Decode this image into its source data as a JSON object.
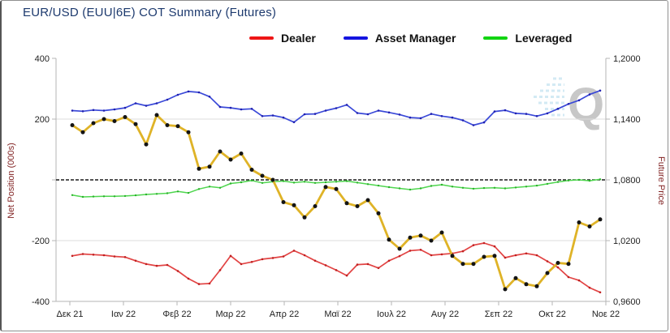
{
  "header": {
    "title": "EUR/USD (EUU|6E) COT Summary (Futures)"
  },
  "watermark": {
    "text": "Q"
  },
  "colors": {
    "title": "#1d3a6e",
    "axis_title": "#7f1f1f",
    "tick_label": "#222222",
    "grid": "#dcdcdc",
    "axis_line": "#b5b5b5",
    "zero_line": "#1a1a1a",
    "watermark_q": "#c2c2c2",
    "watermark_rays": "#cfe8f3"
  },
  "chart_data": {
    "type": "line",
    "title": "EUR/USD (EUU|6E) COT Summary (Futures)",
    "x_tick_labels": [
      "Δεκ 21",
      "Ιαν 22",
      "Φεβ 22",
      "Μαρ 22",
      "Απρ 22",
      "Μαϊ 22",
      "Ιουλ 22",
      "Αυγ 22",
      "Σεπ 22",
      "Οκτ 22",
      "Νοε 22"
    ],
    "left_axis": {
      "label": "Net Position (000s)",
      "range": [
        -400,
        400
      ],
      "tick_values": [
        400,
        200,
        0,
        -200,
        -400
      ],
      "tick_labels": [
        "400",
        "200",
        "",
        "-200",
        "-400"
      ]
    },
    "right_axis": {
      "label": "Future Price",
      "range": [
        0.96,
        1.2
      ],
      "tick_values": [
        1.2,
        1.14,
        1.08,
        1.02,
        0.96
      ],
      "tick_labels": [
        "1,2000",
        "1,1400",
        "1,0800",
        "1,0200",
        "0,9600"
      ]
    },
    "zero_line": {
      "style": "dashed",
      "left_value": 0,
      "right_value": 1.08
    },
    "grid_values": [
      200,
      -200
    ],
    "legend": [
      {
        "label": "Dealer",
        "color": "#ee1616"
      },
      {
        "label": "Asset Manager",
        "color": "#1414e0"
      },
      {
        "label": "Leveraged",
        "color": "#12d412"
      }
    ],
    "series": [
      {
        "name": "Dealer",
        "axis": "left",
        "color": "#e24444",
        "marker_color": "#c02020",
        "values": [
          -250,
          -244,
          -246,
          -248,
          -252,
          -254,
          -266,
          -277,
          -283,
          -280,
          -300,
          -325,
          -343,
          -341,
          -297,
          -250,
          -277,
          -270,
          -261,
          -257,
          -252,
          -233,
          -248,
          -266,
          -281,
          -297,
          -315,
          -279,
          -277,
          -290,
          -266,
          -251,
          -233,
          -230,
          -248,
          -245,
          -242,
          -235,
          -215,
          -208,
          -219,
          -256,
          -248,
          -242,
          -248,
          -268,
          -288,
          -320,
          -331,
          -355,
          -370
        ]
      },
      {
        "name": "Asset Manager",
        "axis": "left",
        "color": "#3a49d8",
        "marker_color": "#2020b0",
        "values": [
          228,
          226,
          230,
          228,
          232,
          237,
          252,
          244,
          252,
          264,
          280,
          291,
          288,
          274,
          240,
          237,
          232,
          234,
          210,
          212,
          205,
          190,
          216,
          217,
          228,
          236,
          247,
          220,
          216,
          228,
          222,
          215,
          205,
          203,
          217,
          210,
          205,
          196,
          180,
          189,
          225,
          229,
          219,
          217,
          210,
          219,
          234,
          250,
          262,
          281,
          294
        ]
      },
      {
        "name": "Leveraged",
        "axis": "left",
        "color": "#4fd64f",
        "marker_color": "#2ab22a",
        "values": [
          -50,
          -56,
          -55,
          -54,
          -54,
          -53,
          -51,
          -48,
          -46,
          -44,
          -38,
          -43,
          -30,
          -22,
          -26,
          -12,
          -8,
          -2,
          -10,
          -6,
          -4,
          -9,
          -6,
          -10,
          -8,
          -6,
          -4,
          -9,
          -14,
          -19,
          -24,
          -28,
          -32,
          -28,
          -20,
          -16,
          -22,
          -26,
          -29,
          -27,
          -26,
          -28,
          -25,
          -22,
          -19,
          -13,
          -7,
          -2,
          0,
          -3,
          2
        ]
      },
      {
        "name": "Future Price",
        "axis": "right",
        "color": "#dfb327",
        "marker_color": "#141414",
        "values": [
          1.134,
          1.127,
          1.136,
          1.14,
          1.138,
          1.142,
          1.135,
          1.115,
          1.144,
          1.134,
          1.133,
          1.127,
          1.091,
          1.093,
          1.108,
          1.1,
          1.106,
          1.09,
          1.084,
          1.08,
          1.058,
          1.055,
          1.043,
          1.054,
          1.073,
          1.071,
          1.057,
          1.054,
          1.06,
          1.047,
          1.021,
          1.012,
          1.023,
          1.025,
          1.02,
          1.028,
          1.005,
          0.997,
          0.997,
          1.004,
          1.005,
          0.972,
          0.983,
          0.977,
          0.975,
          0.988,
          0.998,
          0.997,
          1.038,
          1.034,
          1.041
        ]
      }
    ],
    "legend_position": "top",
    "grid": "horizontal-sparse"
  }
}
